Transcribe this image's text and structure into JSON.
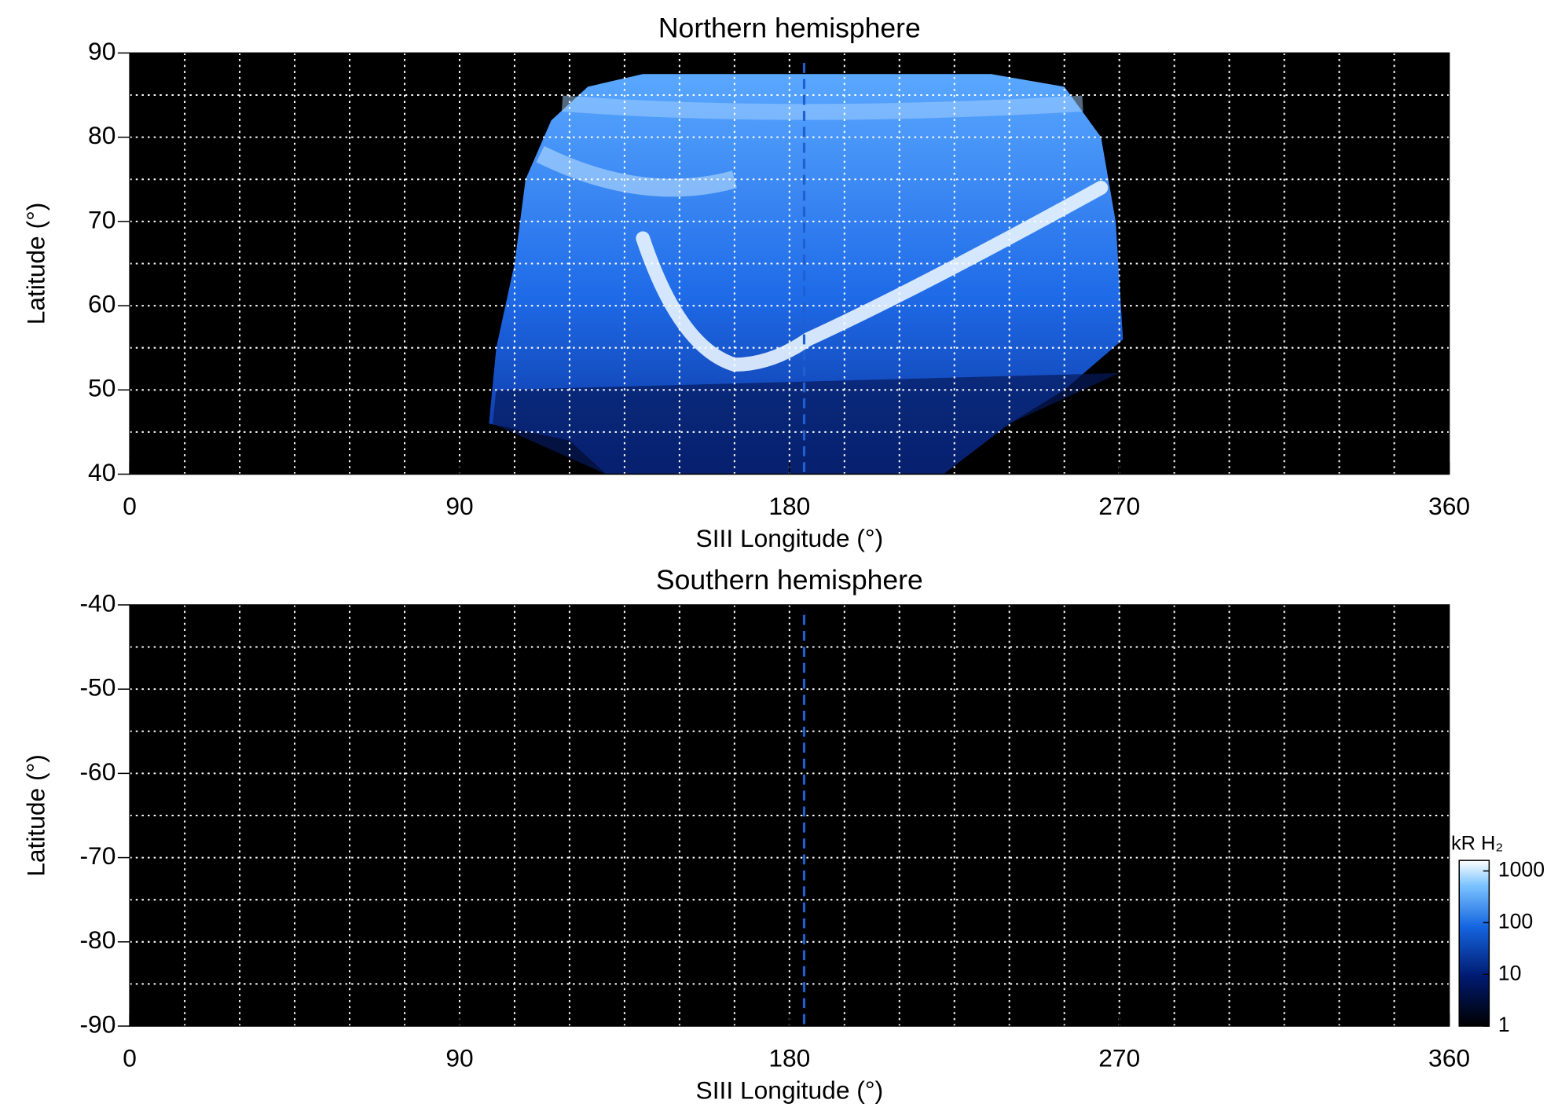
{
  "chart_data": [
    {
      "type": "heatmap",
      "title": "Northern hemisphere",
      "xlabel": "SIII Longitude (°)",
      "ylabel": "Latitude (°)",
      "xlim": [
        0,
        360
      ],
      "xticks": [
        0,
        90,
        180,
        270,
        360
      ],
      "xgrid": [
        15,
        30,
        45,
        60,
        75,
        90,
        105,
        120,
        135,
        150,
        165,
        180,
        195,
        210,
        225,
        240,
        255,
        270,
        285,
        300,
        315,
        330,
        345
      ],
      "ylim": [
        40,
        90
      ],
      "yticks": [
        40,
        50,
        60,
        70,
        80,
        90
      ],
      "ygrid": [
        45,
        50,
        55,
        60,
        65,
        70,
        75,
        80,
        85
      ],
      "background": "#000000",
      "reference_lines": [
        {
          "x": 184,
          "color": "#1f5fd0"
        }
      ]
    },
    {
      "type": "heatmap",
      "title": "Southern hemisphere",
      "xlabel": "SIII Longitude (°)",
      "ylabel": "Latitude (°)",
      "xlim": [
        0,
        360
      ],
      "xticks": [
        0,
        90,
        180,
        270,
        360
      ],
      "xgrid": [
        15,
        30,
        45,
        60,
        75,
        90,
        105,
        120,
        135,
        150,
        165,
        180,
        195,
        210,
        225,
        240,
        255,
        270,
        285,
        300,
        315,
        330,
        345
      ],
      "ylim": [
        -90,
        -40
      ],
      "yticks": [
        -90,
        -80,
        -70,
        -60,
        -50,
        -40
      ],
      "ygrid": [
        -85,
        -80,
        -75,
        -70,
        -65,
        -60,
        -55,
        -50,
        -45
      ],
      "background": "#000000",
      "reference_lines": [
        {
          "x": 184,
          "color": "#1f5fd0"
        }
      ],
      "colorbar": {
        "label": "kR H₂",
        "lim": [
          1,
          1600
        ],
        "ticks": [
          1,
          10,
          100,
          1000
        ],
        "log": true
      }
    }
  ]
}
